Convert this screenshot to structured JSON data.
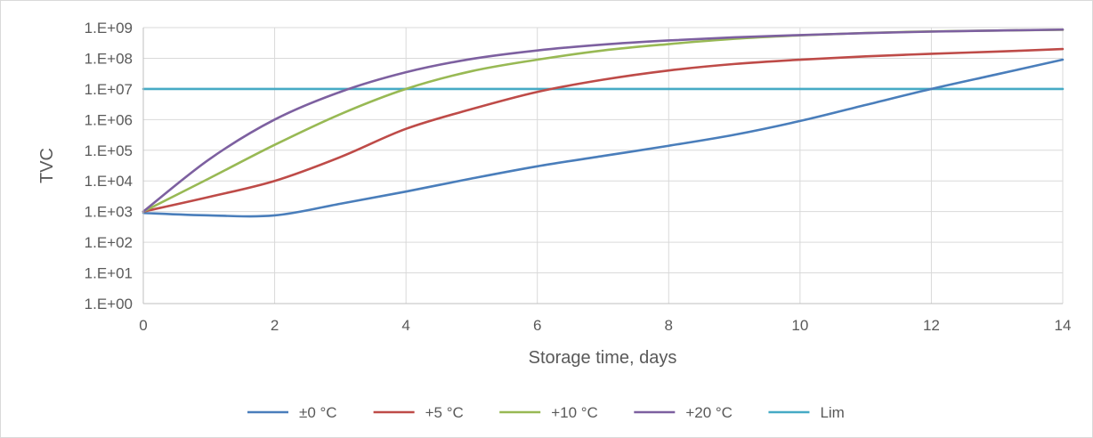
{
  "chart_data": {
    "type": "line",
    "title": "",
    "xlabel": "Storage time, days",
    "ylabel": "TVC",
    "xlim": [
      0,
      14
    ],
    "ylim": [
      1,
      1000000000
    ],
    "yscale": "log",
    "grid": true,
    "legend_position": "bottom",
    "x_ticks": [
      0,
      2,
      4,
      6,
      8,
      10,
      12,
      14
    ],
    "x_tick_labels": [
      "0",
      "2",
      "4",
      "6",
      "8",
      "10",
      "12",
      "14"
    ],
    "y_ticks": [
      1,
      10,
      100,
      1000,
      10000,
      100000,
      1000000,
      10000000,
      100000000,
      1000000000
    ],
    "y_tick_labels": [
      "1.E+00",
      "1.E+01",
      "1.E+02",
      "1.E+03",
      "1.E+04",
      "1.E+05",
      "1.E+06",
      "1.E+07",
      "1.E+08",
      "1.E+09"
    ],
    "x": [
      0,
      1,
      2,
      3,
      4,
      5,
      6,
      7,
      8,
      9,
      10,
      11,
      12,
      13,
      14
    ],
    "series": [
      {
        "name": "±0 °C",
        "color": "#4a7ebb",
        "values": [
          900,
          750,
          750,
          1800,
          4500,
          12000,
          30000,
          65000,
          140000,
          320000,
          900000,
          3000000,
          10000000,
          30000000,
          90000000
        ]
      },
      {
        "name": "+5 °C",
        "color": "#be4b48",
        "values": [
          1000,
          3000,
          10000,
          60000,
          500000,
          2200000,
          8000000,
          20000000,
          40000000,
          65000000,
          90000000,
          115000000,
          140000000,
          165000000,
          200000000
        ]
      },
      {
        "name": "+10 °C",
        "color": "#98b954",
        "values": [
          1000,
          12000,
          150000,
          1500000,
          10000000,
          38000000,
          90000000,
          180000000,
          290000000,
          430000000,
          560000000,
          670000000,
          750000000,
          800000000,
          850000000
        ]
      },
      {
        "name": "+20 °C",
        "color": "#7d60a0",
        "values": [
          1000,
          50000,
          1000000,
          8000000,
          35000000,
          95000000,
          180000000,
          280000000,
          380000000,
          480000000,
          570000000,
          660000000,
          740000000,
          800000000,
          860000000
        ]
      },
      {
        "name": "Lim",
        "color": "#46aac5",
        "values": [
          10000000,
          10000000,
          10000000,
          10000000,
          10000000,
          10000000,
          10000000,
          10000000,
          10000000,
          10000000,
          10000000,
          10000000,
          10000000,
          10000000,
          10000000
        ]
      }
    ]
  },
  "colors": {
    "grid": "#d9d9d9",
    "axis": "#bfbfbf",
    "text": "#595959"
  }
}
